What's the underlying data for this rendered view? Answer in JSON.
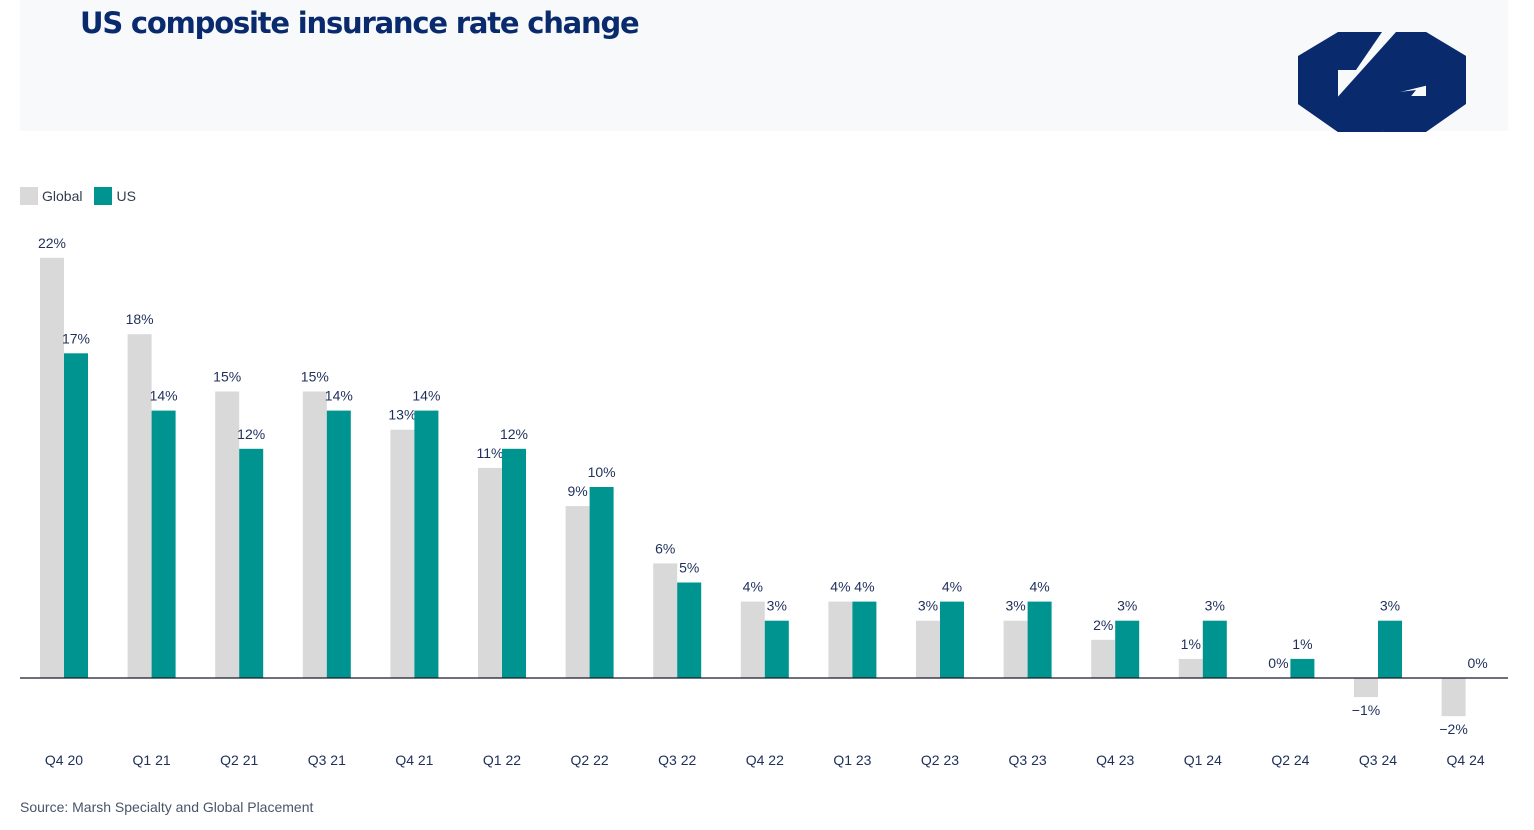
{
  "header": {
    "title": "US composite insurance rate change"
  },
  "legend": {
    "global_label": "Global",
    "us_label": "US"
  },
  "colors": {
    "global": "#d9d9d9",
    "us": "#009490",
    "brand": "#0a2a6e",
    "axis": "#1a1a2e",
    "label": "#1e2f5a"
  },
  "source": "Source: Marsh Specialty and Global Placement",
  "chart_data": {
    "type": "bar",
    "title": "US composite insurance rate change",
    "categories": [
      "Q4 20",
      "Q1 21",
      "Q2 21",
      "Q3 21",
      "Q4 21",
      "Q1 22",
      "Q2 22",
      "Q3 22",
      "Q4 22",
      "Q1 23",
      "Q2 23",
      "Q3 23",
      "Q4 23",
      "Q1 24",
      "Q2 24",
      "Q3 24",
      "Q4 24"
    ],
    "series": [
      {
        "name": "Global",
        "values": [
          22,
          18,
          15,
          15,
          13,
          11,
          9,
          6,
          4,
          4,
          3,
          3,
          2,
          1,
          0,
          -1,
          -2
        ],
        "labels": [
          "22%",
          "18%",
          "15%",
          "15%",
          "13%",
          "11%",
          "9%",
          "6%",
          "4%",
          "4%",
          "3%",
          "3%",
          "2%",
          "1%",
          "0%",
          "−1%",
          "−2%"
        ]
      },
      {
        "name": "US",
        "values": [
          17,
          14,
          12,
          14,
          14,
          12,
          10,
          5,
          3,
          4,
          4,
          4,
          3,
          3,
          1,
          3,
          0
        ],
        "labels": [
          "17%",
          "14%",
          "12%",
          "14%",
          "14%",
          "12%",
          "10%",
          "5%",
          "3%",
          "4%",
          "4%",
          "4%",
          "3%",
          "3%",
          "1%",
          "3%",
          "0%"
        ]
      }
    ],
    "unit": "%",
    "ylim": [
      -2,
      22
    ],
    "grid": false,
    "legend_position": "top-left"
  }
}
